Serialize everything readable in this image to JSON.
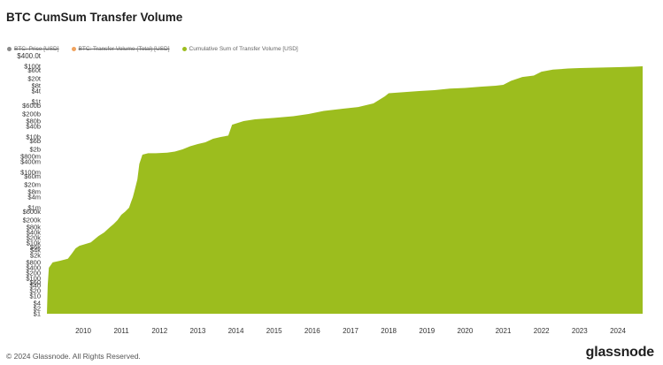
{
  "chart_data": {
    "type": "area",
    "title": "BTC CumSum Transfer Volume",
    "legend": [
      {
        "name": "BTC: Price [USD]",
        "color": "#8a8a8a",
        "hidden": true
      },
      {
        "name": "BTC: Transfer Volume (Total) [USD]",
        "color": "#f0a35e",
        "hidden": true
      },
      {
        "name": "Cumulative Sum of Transfer Volume [USD]",
        "color": "#9cbd1e",
        "hidden": false
      }
    ],
    "y_scale": "log",
    "y_top_label": "$400.0t",
    "y_ticks": [
      {
        "label": "$1",
        "v": 1
      },
      {
        "label": "$2",
        "v": 2
      },
      {
        "label": "$4",
        "v": 4
      },
      {
        "label": "$10",
        "v": 10
      },
      {
        "label": "$20",
        "v": 20
      },
      {
        "label": "$40",
        "v": 40
      },
      {
        "label": "$60",
        "v": 60
      },
      {
        "label": "$100",
        "v": 100
      },
      {
        "label": "$200",
        "v": 200
      },
      {
        "label": "$400",
        "v": 400
      },
      {
        "label": "$800",
        "v": 800
      },
      {
        "label": "$2k",
        "v": 2000
      },
      {
        "label": "$4k",
        "v": 4000
      },
      {
        "label": "$6k",
        "v": 6000
      },
      {
        "label": "$10k",
        "v": 10000
      },
      {
        "label": "$20k",
        "v": 20000
      },
      {
        "label": "$40k",
        "v": 40000
      },
      {
        "label": "$80k",
        "v": 80000
      },
      {
        "label": "$200k",
        "v": 200000
      },
      {
        "label": "$600k",
        "v": 600000
      },
      {
        "label": "$1m",
        "v": 1000000
      },
      {
        "label": "$4m",
        "v": 4000000
      },
      {
        "label": "$8m",
        "v": 8000000
      },
      {
        "label": "$20m",
        "v": 20000000
      },
      {
        "label": "$60m",
        "v": 60000000
      },
      {
        "label": "$100m",
        "v": 100000000
      },
      {
        "label": "$400m",
        "v": 400000000
      },
      {
        "label": "$800m",
        "v": 800000000
      },
      {
        "label": "$2b",
        "v": 2000000000
      },
      {
        "label": "$6b",
        "v": 6000000000
      },
      {
        "label": "$10b",
        "v": 10000000000
      },
      {
        "label": "$40b",
        "v": 40000000000
      },
      {
        "label": "$80b",
        "v": 80000000000
      },
      {
        "label": "$200b",
        "v": 200000000000
      },
      {
        "label": "$600b",
        "v": 600000000000
      },
      {
        "label": "$1t",
        "v": 1000000000000
      },
      {
        "label": "$4t",
        "v": 4000000000000
      },
      {
        "label": "$8t",
        "v": 8000000000000
      },
      {
        "label": "$20t",
        "v": 20000000000000
      },
      {
        "label": "$60t",
        "v": 60000000000000
      },
      {
        "label": "$100t",
        "v": 100000000000000
      }
    ],
    "x_ticks": [
      "2010",
      "2011",
      "2012",
      "2013",
      "2014",
      "2015",
      "2016",
      "2017",
      "2018",
      "2019",
      "2020",
      "2021",
      "2022",
      "2023",
      "2024"
    ],
    "x_range": [
      2009.05,
      2024.65
    ],
    "y_range": [
      1,
      400000000000000
    ],
    "series": [
      {
        "name": "Cumulative Sum of Transfer Volume [USD]",
        "points": [
          [
            2009.05,
            1
          ],
          [
            2009.07,
            40
          ],
          [
            2009.1,
            400
          ],
          [
            2009.2,
            800
          ],
          [
            2009.4,
            1000
          ],
          [
            2009.6,
            1300
          ],
          [
            2009.7,
            2500
          ],
          [
            2009.8,
            5000
          ],
          [
            2009.9,
            7000
          ],
          [
            2010.0,
            8000
          ],
          [
            2010.2,
            11000
          ],
          [
            2010.4,
            25000
          ],
          [
            2010.55,
            40000
          ],
          [
            2010.7,
            80000
          ],
          [
            2010.8,
            120000
          ],
          [
            2010.9,
            200000
          ],
          [
            2011.0,
            400000
          ],
          [
            2011.1,
            600000
          ],
          [
            2011.2,
            1000000
          ],
          [
            2011.25,
            2000000
          ],
          [
            2011.3,
            4000000
          ],
          [
            2011.35,
            10000000
          ],
          [
            2011.42,
            40000000
          ],
          [
            2011.47,
            300000000
          ],
          [
            2011.55,
            1000000000
          ],
          [
            2011.7,
            1200000000
          ],
          [
            2011.9,
            1200000000
          ],
          [
            2012.2,
            1300000000
          ],
          [
            2012.4,
            1500000000
          ],
          [
            2012.6,
            2000000000
          ],
          [
            2012.8,
            3000000000
          ],
          [
            2013.0,
            4000000000
          ],
          [
            2013.2,
            5000000000
          ],
          [
            2013.4,
            8000000000
          ],
          [
            2013.6,
            10000000000
          ],
          [
            2013.8,
            12000000000
          ],
          [
            2013.9,
            50000000000
          ],
          [
            2014.2,
            80000000000
          ],
          [
            2014.5,
            100000000000
          ],
          [
            2015.0,
            120000000000
          ],
          [
            2015.5,
            150000000000
          ],
          [
            2015.9,
            200000000000
          ],
          [
            2016.3,
            300000000000
          ],
          [
            2016.8,
            400000000000
          ],
          [
            2017.2,
            500000000000
          ],
          [
            2017.6,
            800000000000
          ],
          [
            2017.9,
            2000000000000
          ],
          [
            2018.0,
            3000000000000
          ],
          [
            2018.4,
            3500000000000
          ],
          [
            2018.8,
            4000000000000
          ],
          [
            2019.2,
            4500000000000
          ],
          [
            2019.6,
            5500000000000
          ],
          [
            2020.0,
            6000000000000
          ],
          [
            2020.4,
            7000000000000
          ],
          [
            2020.8,
            8000000000000
          ],
          [
            2021.0,
            9000000000000
          ],
          [
            2021.2,
            15000000000000
          ],
          [
            2021.5,
            25000000000000
          ],
          [
            2021.8,
            30000000000000
          ],
          [
            2022.0,
            50000000000000
          ],
          [
            2022.3,
            65000000000000
          ],
          [
            2022.7,
            75000000000000
          ],
          [
            2023.0,
            80000000000000
          ],
          [
            2023.5,
            85000000000000
          ],
          [
            2024.0,
            90000000000000
          ],
          [
            2024.4,
            95000000000000
          ],
          [
            2024.65,
            100000000000000
          ]
        ]
      }
    ]
  },
  "footer": {
    "copyright": "© 2024 Glassnode. All Rights Reserved.",
    "brand": "glassnode"
  },
  "colors": {
    "area": "#9cbd1e",
    "axis_text": "#333333",
    "gridline": "#dddddd"
  }
}
